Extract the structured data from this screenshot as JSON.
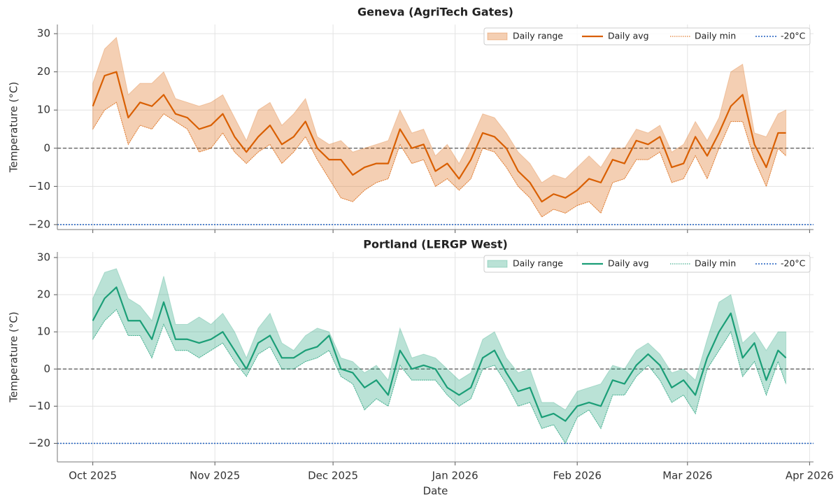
{
  "chart_data": [
    {
      "type": "line",
      "title": "Geneva (AgriTech Gates)",
      "ylabel": "Temperature (°C)",
      "x": [
        "2025-10-01",
        "2025-10-04",
        "2025-10-07",
        "2025-10-10",
        "2025-10-13",
        "2025-10-16",
        "2025-10-19",
        "2025-10-22",
        "2025-10-25",
        "2025-10-28",
        "2025-10-31",
        "2025-11-03",
        "2025-11-06",
        "2025-11-09",
        "2025-11-12",
        "2025-11-15",
        "2025-11-18",
        "2025-11-21",
        "2025-11-24",
        "2025-11-27",
        "2025-11-30",
        "2025-12-03",
        "2025-12-06",
        "2025-12-09",
        "2025-12-12",
        "2025-12-15",
        "2025-12-18",
        "2025-12-21",
        "2025-12-24",
        "2025-12-27",
        "2025-12-30",
        "2026-01-02",
        "2026-01-05",
        "2026-01-08",
        "2026-01-11",
        "2026-01-14",
        "2026-01-17",
        "2026-01-20",
        "2026-01-23",
        "2026-01-26",
        "2026-01-29",
        "2026-02-01",
        "2026-02-04",
        "2026-02-07",
        "2026-02-10",
        "2026-02-13",
        "2026-02-16",
        "2026-02-19",
        "2026-02-22",
        "2026-02-25",
        "2026-02-28",
        "2026-03-03",
        "2026-03-06",
        "2026-03-09",
        "2026-03-12",
        "2026-03-15",
        "2026-03-18",
        "2026-03-21",
        "2026-03-24",
        "2026-03-26"
      ],
      "band": {
        "name": "Daily range",
        "color": "#d95f02",
        "upper": [
          17,
          26,
          29,
          14,
          17,
          17,
          20,
          13,
          12,
          11,
          12,
          14,
          8,
          2,
          10,
          12,
          6,
          9,
          13,
          3,
          1,
          2,
          -1,
          0,
          1,
          2,
          10,
          4,
          5,
          -2,
          1,
          -4,
          2,
          9,
          8,
          4,
          -1,
          -4,
          -9,
          -7,
          -8,
          -5,
          -2,
          -5,
          0,
          0,
          5,
          4,
          6,
          -1,
          1,
          7,
          2,
          8,
          20,
          22,
          4,
          3,
          9,
          10
        ]
      },
      "series": [
        {
          "name": "Daily avg",
          "color": "#d95f02",
          "values": [
            11,
            19,
            20,
            8,
            12,
            11,
            14,
            9,
            8,
            5,
            6,
            9,
            3,
            -1,
            3,
            6,
            1,
            3,
            7,
            0,
            -3,
            -3,
            -7,
            -5,
            -4,
            -4,
            5,
            0,
            1,
            -6,
            -4,
            -8,
            -3,
            4,
            3,
            0,
            -6,
            -9,
            -14,
            -12,
            -13,
            -11,
            -8,
            -9,
            -3,
            -4,
            2,
            1,
            3,
            -5,
            -4,
            3,
            -2,
            4,
            11,
            14,
            1,
            -5,
            4,
            4
          ]
        },
        {
          "name": "Daily min",
          "color": "#d95f02",
          "values": [
            5,
            10,
            12,
            1,
            6,
            5,
            9,
            7,
            5,
            -1,
            0,
            4,
            -1,
            -4,
            -1,
            1,
            -4,
            -1,
            3,
            -3,
            -8,
            -13,
            -14,
            -11,
            -9,
            -8,
            1,
            -4,
            -3,
            -10,
            -8,
            -11,
            -8,
            0,
            -1,
            -5,
            -10,
            -13,
            -18,
            -16,
            -17,
            -15,
            -14,
            -17,
            -9,
            -8,
            -3,
            -3,
            -1,
            -9,
            -8,
            -2,
            -8,
            0,
            7,
            7,
            -3,
            -10,
            0,
            -2
          ]
        }
      ],
      "threshold": {
        "value": -20,
        "label": "-20°C",
        "color": "#1f5fbf"
      },
      "reference_line": 0,
      "xlim": [
        "2025-09-22",
        "2026-04-02"
      ],
      "xticks": [
        {
          "value": "2025-10-01",
          "label": "Oct 2025"
        },
        {
          "value": "2025-11-01",
          "label": "Nov 2025"
        },
        {
          "value": "2025-12-01",
          "label": "Dec 2025"
        },
        {
          "value": "2026-01-01",
          "label": "Jan 2026"
        },
        {
          "value": "2026-02-01",
          "label": "Feb 2026"
        },
        {
          "value": "2026-03-01",
          "label": "Mar 2026"
        },
        {
          "value": "2026-04-01",
          "label": "Apr 2026"
        }
      ],
      "ylim": [
        -21.3,
        32.4
      ],
      "yticks": [
        {
          "value": -20,
          "label": "−20"
        },
        {
          "value": -10,
          "label": "−10"
        },
        0,
        10,
        20,
        30
      ],
      "grid": true,
      "legend": "upper right"
    },
    {
      "type": "line",
      "title": "Portland (LERGP West)",
      "ylabel": "Temperature (°C)",
      "xlabel": "Date",
      "x": [
        "2025-10-01",
        "2025-10-04",
        "2025-10-07",
        "2025-10-10",
        "2025-10-13",
        "2025-10-16",
        "2025-10-19",
        "2025-10-22",
        "2025-10-25",
        "2025-10-28",
        "2025-10-31",
        "2025-11-03",
        "2025-11-06",
        "2025-11-09",
        "2025-11-12",
        "2025-11-15",
        "2025-11-18",
        "2025-11-21",
        "2025-11-24",
        "2025-11-27",
        "2025-11-30",
        "2025-12-03",
        "2025-12-06",
        "2025-12-09",
        "2025-12-12",
        "2025-12-15",
        "2025-12-18",
        "2025-12-21",
        "2025-12-24",
        "2025-12-27",
        "2025-12-30",
        "2026-01-02",
        "2026-01-05",
        "2026-01-08",
        "2026-01-11",
        "2026-01-14",
        "2026-01-17",
        "2026-01-20",
        "2026-01-23",
        "2026-01-26",
        "2026-01-29",
        "2026-02-01",
        "2026-02-04",
        "2026-02-07",
        "2026-02-10",
        "2026-02-13",
        "2026-02-16",
        "2026-02-19",
        "2026-02-22",
        "2026-02-25",
        "2026-02-28",
        "2026-03-03",
        "2026-03-06",
        "2026-03-09",
        "2026-03-12",
        "2026-03-15",
        "2026-03-18",
        "2026-03-21",
        "2026-03-24",
        "2026-03-26"
      ],
      "band": {
        "name": "Daily range",
        "color": "#1b9e77",
        "upper": [
          19,
          26,
          27,
          19,
          17,
          13,
          25,
          12,
          12,
          14,
          12,
          15,
          10,
          3,
          11,
          15,
          7,
          5,
          9,
          11,
          10,
          3,
          2,
          -1,
          1,
          -3,
          11,
          3,
          4,
          3,
          0,
          -3,
          -1,
          8,
          10,
          3,
          -1,
          0,
          -9,
          -9,
          -11,
          -6,
          -5,
          -4,
          1,
          0,
          5,
          7,
          4,
          -1,
          0,
          -3,
          8,
          18,
          20,
          7,
          10,
          5,
          10,
          10
        ]
      },
      "series": [
        {
          "name": "Daily avg",
          "color": "#1b9e77",
          "values": [
            13,
            19,
            22,
            13,
            13,
            8,
            18,
            8,
            8,
            7,
            8,
            10,
            5,
            0,
            7,
            9,
            3,
            3,
            5,
            6,
            9,
            0,
            -1,
            -5,
            -3,
            -7,
            5,
            0,
            1,
            0,
            -5,
            -7,
            -5,
            3,
            5,
            -1,
            -6,
            -5,
            -13,
            -12,
            -14,
            -10,
            -9,
            -10,
            -3,
            -4,
            1,
            4,
            1,
            -5,
            -3,
            -7,
            3,
            10,
            15,
            3,
            7,
            -3,
            5,
            3
          ]
        },
        {
          "name": "Daily min",
          "color": "#1b9e77",
          "values": [
            8,
            13,
            16,
            9,
            9,
            3,
            12,
            5,
            5,
            3,
            5,
            7,
            2,
            -2,
            4,
            6,
            0,
            0,
            2,
            3,
            5,
            -2,
            -4,
            -11,
            -8,
            -10,
            1,
            -3,
            -3,
            -3,
            -7,
            -10,
            -8,
            0,
            1,
            -4,
            -10,
            -9,
            -16,
            -15,
            -20,
            -13,
            -11,
            -16,
            -7,
            -7,
            -2,
            1,
            -3,
            -9,
            -7,
            -12,
            0,
            5,
            10,
            -2,
            2,
            -7,
            2,
            -4
          ]
        }
      ],
      "threshold": {
        "value": -20,
        "label": "-20°C",
        "color": "#1f5fbf"
      },
      "reference_line": 0,
      "xlim": [
        "2025-09-22",
        "2026-04-02"
      ],
      "xticks": [
        {
          "value": "2025-10-01",
          "label": "Oct 2025"
        },
        {
          "value": "2025-11-01",
          "label": "Nov 2025"
        },
        {
          "value": "2025-12-01",
          "label": "Dec 2025"
        },
        {
          "value": "2026-01-01",
          "label": "Jan 2026"
        },
        {
          "value": "2026-02-01",
          "label": "Feb 2026"
        },
        {
          "value": "2026-03-01",
          "label": "Mar 2026"
        },
        {
          "value": "2026-04-01",
          "label": "Apr 2026"
        }
      ],
      "ylim": [
        -25,
        31.5
      ],
      "yticks": [
        {
          "value": -20,
          "label": "−20"
        },
        {
          "value": -10,
          "label": "−10"
        },
        0,
        10,
        20,
        30
      ],
      "grid": true,
      "legend": "upper right"
    }
  ]
}
